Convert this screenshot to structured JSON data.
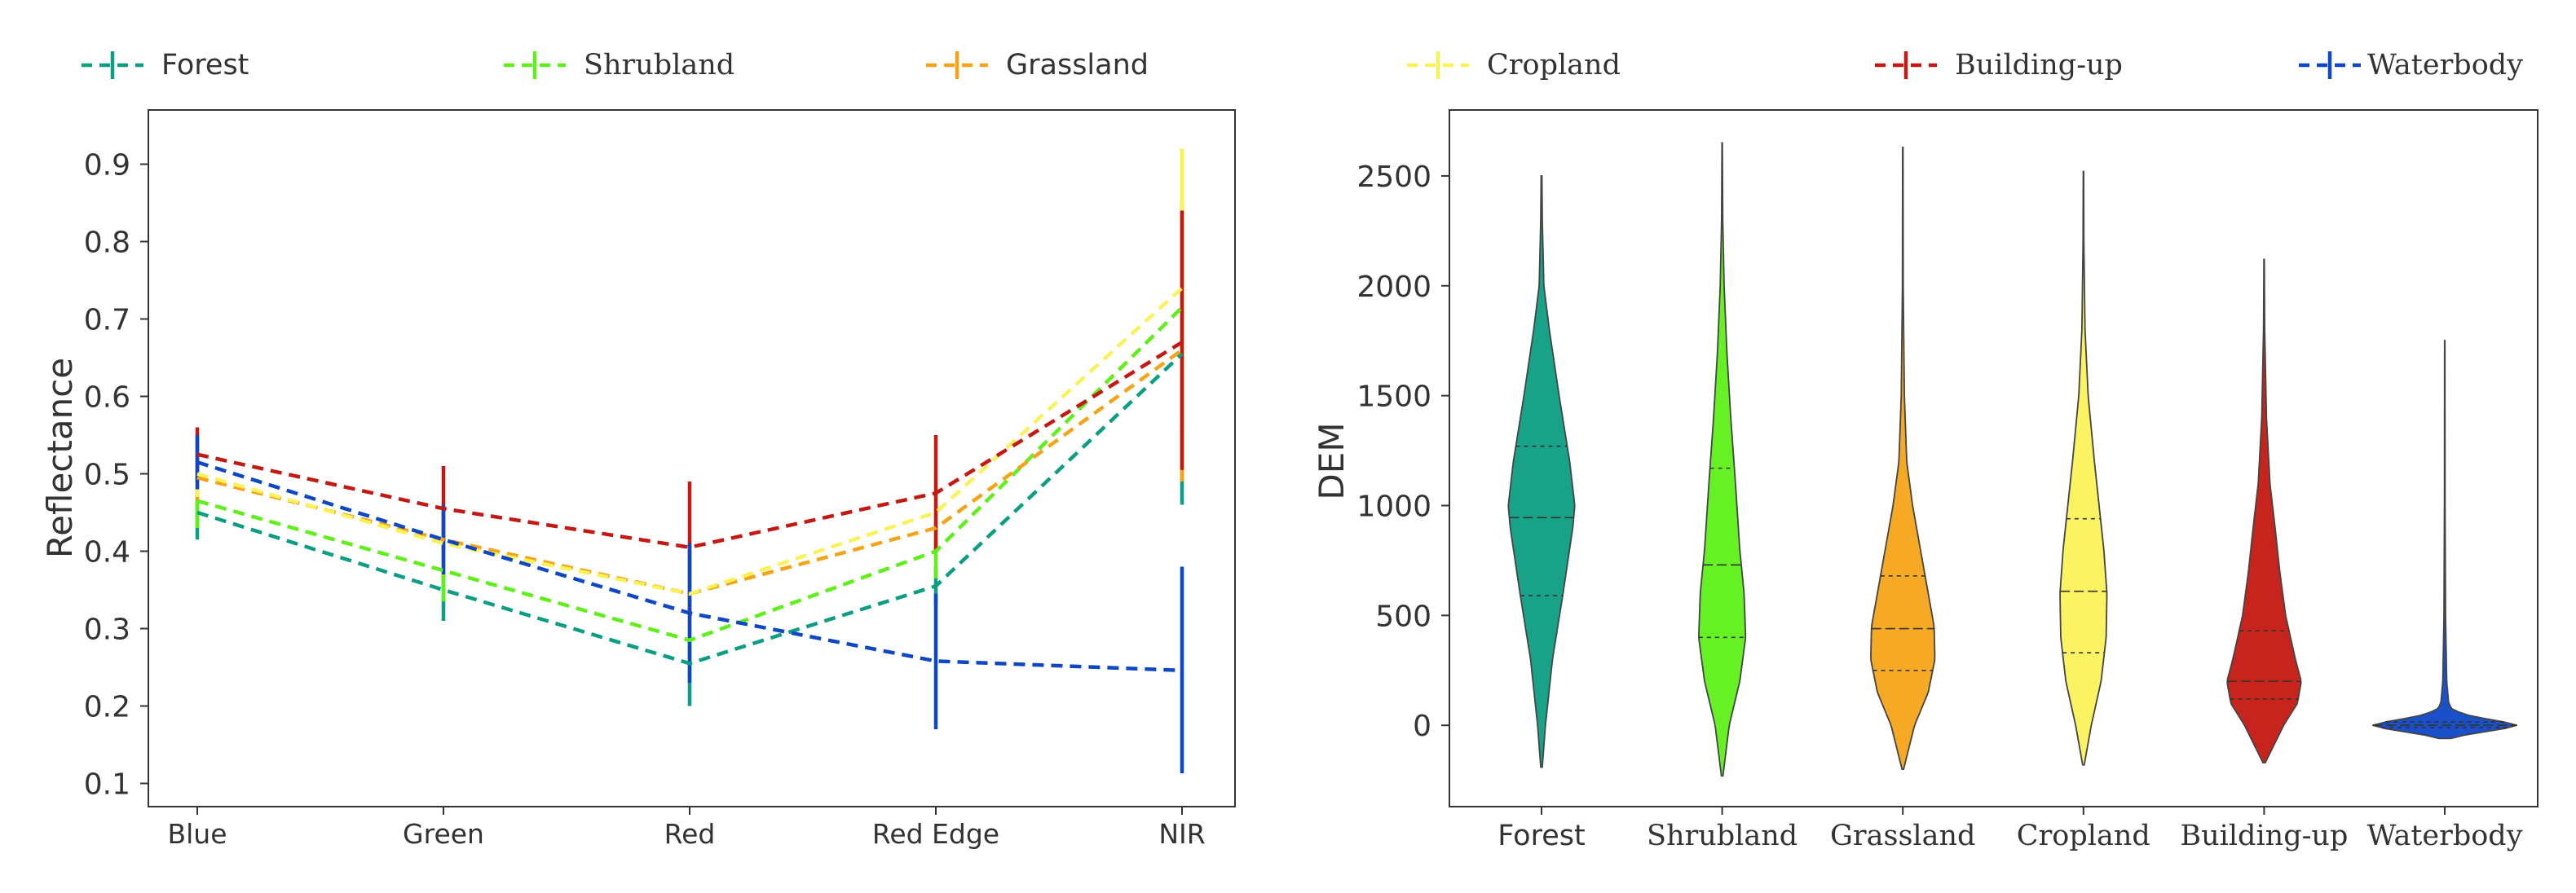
{
  "chart_data": [
    {
      "type": "line",
      "title": "",
      "xlabel": "",
      "ylabel": "Reflectance",
      "categories": [
        "Blue",
        "Green",
        "Red",
        "Red Edge",
        "NIR"
      ],
      "ylim": [
        0.07,
        0.97
      ],
      "yticks": [
        0.1,
        0.2,
        0.3,
        0.4,
        0.5,
        0.6,
        0.7,
        0.8,
        0.9
      ],
      "ytick_labels": [
        "0.1",
        "0.2",
        "0.3",
        "0.4",
        "0.5",
        "0.6",
        "0.7",
        "0.8",
        "0.9"
      ],
      "grid": false,
      "legend": "top",
      "series": [
        {
          "name": "Forest",
          "color": "#0c9e83",
          "values": [
            0.45,
            0.35,
            0.255,
            0.355,
            0.655
          ],
          "err_low": [
            0.415,
            0.31,
            0.2,
            0.33,
            0.46
          ],
          "err_high": [
            0.485,
            0.4,
            0.31,
            0.38,
            0.85
          ]
        },
        {
          "name": "Shrubland",
          "color": "#5ef018",
          "values": [
            0.465,
            0.375,
            0.285,
            0.4,
            0.715
          ],
          "err_low": [
            0.43,
            0.335,
            0.235,
            0.365,
            0.5
          ],
          "err_high": [
            0.5,
            0.415,
            0.335,
            0.435,
            0.92
          ]
        },
        {
          "name": "Grassland",
          "color": "#f5a418",
          "values": [
            0.495,
            0.415,
            0.345,
            0.43,
            0.66
          ],
          "err_low": [
            0.465,
            0.37,
            0.29,
            0.4,
            0.49
          ],
          "err_high": [
            0.525,
            0.46,
            0.4,
            0.46,
            0.83
          ]
        },
        {
          "name": "Cropland",
          "color": "#fbf25a",
          "values": [
            0.5,
            0.41,
            0.345,
            0.45,
            0.74
          ],
          "err_low": [
            0.47,
            0.37,
            0.29,
            0.41,
            0.56
          ],
          "err_high": [
            0.53,
            0.45,
            0.4,
            0.49,
            0.92
          ]
        },
        {
          "name": "Building-up",
          "color": "#c41812",
          "values": [
            0.525,
            0.455,
            0.405,
            0.475,
            0.67
          ],
          "err_low": [
            0.49,
            0.4,
            0.32,
            0.4,
            0.505
          ],
          "err_high": [
            0.56,
            0.51,
            0.49,
            0.55,
            0.84
          ]
        },
        {
          "name": "Waterbody",
          "color": "#0e47c6",
          "values": [
            0.515,
            0.415,
            0.32,
            0.258,
            0.246
          ],
          "err_low": [
            0.48,
            0.37,
            0.23,
            0.17,
            0.113
          ],
          "err_high": [
            0.55,
            0.46,
            0.41,
            0.345,
            0.38
          ]
        }
      ]
    },
    {
      "type": "violin",
      "title": "",
      "xlabel": "",
      "ylabel": "DEM",
      "categories": [
        "Forest",
        "Shrubland",
        "Grassland",
        "Cropland",
        "Building-up",
        "Waterbody"
      ],
      "ylim": [
        -370,
        2800
      ],
      "yticks": [
        0,
        500,
        1000,
        1500,
        2000,
        2500
      ],
      "ytick_labels": [
        "0",
        "500",
        "1000",
        "1500",
        "2000",
        "2500"
      ],
      "grid": false,
      "series": [
        {
          "name": "Forest",
          "color": "#0c9e83",
          "min": -190,
          "max": 2500,
          "q1": 590,
          "median": 945,
          "q3": 1270,
          "density": [
            [
              -190,
              0.02
            ],
            [
              0,
              0.1
            ],
            [
              300,
              0.28
            ],
            [
              600,
              0.55
            ],
            [
              900,
              0.8
            ],
            [
              1000,
              0.85
            ],
            [
              1200,
              0.72
            ],
            [
              1500,
              0.45
            ],
            [
              1800,
              0.2
            ],
            [
              2000,
              0.06
            ],
            [
              2300,
              0.02
            ],
            [
              2500,
              0.01
            ]
          ]
        },
        {
          "name": "Shrubland",
          "color": "#5ef018",
          "min": -230,
          "max": 2650,
          "q1": 400,
          "median": 730,
          "q3": 1170,
          "density": [
            [
              -230,
              0.02
            ],
            [
              0,
              0.18
            ],
            [
              200,
              0.45
            ],
            [
              400,
              0.6
            ],
            [
              600,
              0.56
            ],
            [
              800,
              0.45
            ],
            [
              1100,
              0.34
            ],
            [
              1400,
              0.22
            ],
            [
              1700,
              0.12
            ],
            [
              2000,
              0.05
            ],
            [
              2300,
              0.015
            ],
            [
              2650,
              0.005
            ]
          ]
        },
        {
          "name": "Grassland",
          "color": "#f5a418",
          "min": -200,
          "max": 2630,
          "q1": 250,
          "median": 440,
          "q3": 680,
          "density": [
            [
              -200,
              0.02
            ],
            [
              0,
              0.3
            ],
            [
              150,
              0.65
            ],
            [
              300,
              0.82
            ],
            [
              450,
              0.8
            ],
            [
              600,
              0.65
            ],
            [
              800,
              0.45
            ],
            [
              1000,
              0.25
            ],
            [
              1200,
              0.1
            ],
            [
              1500,
              0.04
            ],
            [
              2000,
              0.01
            ],
            [
              2630,
              0.005
            ]
          ]
        },
        {
          "name": "Cropland",
          "color": "#fbf25a",
          "min": -180,
          "max": 2520,
          "q1": 330,
          "median": 610,
          "q3": 940,
          "density": [
            [
              -180,
              0.02
            ],
            [
              0,
              0.2
            ],
            [
              200,
              0.45
            ],
            [
              400,
              0.58
            ],
            [
              600,
              0.6
            ],
            [
              800,
              0.52
            ],
            [
              1000,
              0.4
            ],
            [
              1200,
              0.28
            ],
            [
              1500,
              0.12
            ],
            [
              1800,
              0.04
            ],
            [
              2200,
              0.01
            ],
            [
              2520,
              0.005
            ]
          ]
        },
        {
          "name": "Building-up",
          "color": "#c41812",
          "min": -170,
          "max": 2120,
          "q1": 120,
          "median": 200,
          "q3": 430,
          "density": [
            [
              -170,
              0.03
            ],
            [
              0,
              0.5
            ],
            [
              100,
              0.85
            ],
            [
              200,
              0.95
            ],
            [
              300,
              0.8
            ],
            [
              500,
              0.55
            ],
            [
              700,
              0.4
            ],
            [
              900,
              0.28
            ],
            [
              1100,
              0.15
            ],
            [
              1400,
              0.06
            ],
            [
              1800,
              0.015
            ],
            [
              2120,
              0.005
            ]
          ]
        },
        {
          "name": "Waterbody",
          "color": "#0e47c6",
          "min": -60,
          "max": 1750,
          "q1": -10,
          "median": 0,
          "q3": 15,
          "density": [
            [
              -60,
              0.15
            ],
            [
              -40,
              0.6
            ],
            [
              -20,
              1.4
            ],
            [
              0,
              1.85
            ],
            [
              20,
              1.4
            ],
            [
              40,
              0.7
            ],
            [
              70,
              0.2
            ],
            [
              100,
              0.1
            ],
            [
              200,
              0.05
            ],
            [
              500,
              0.02
            ],
            [
              1000,
              0.008
            ],
            [
              1750,
              0.004
            ]
          ]
        }
      ]
    }
  ]
}
